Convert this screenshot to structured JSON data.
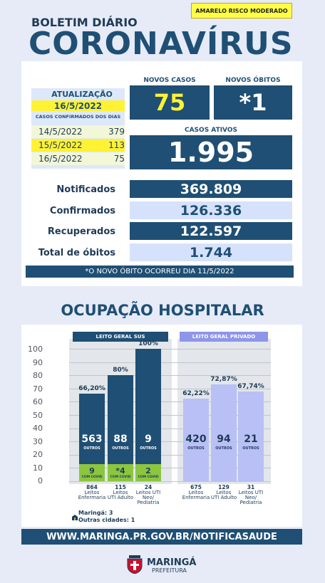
{
  "header": {
    "risk_level": "AMARELO RISCO MODERADO",
    "subtitle": "BOLETIM DIÁRIO",
    "title": "CORONAVÍRUS"
  },
  "update": {
    "label": "ATUALIZAÇÃO",
    "date": "16/5/2022",
    "cases_by_day_label": "CASOS CONFIRMADOS DOS DIAS",
    "days": [
      {
        "date": "14/5/2022",
        "value": "379"
      },
      {
        "date": "15/5/2022",
        "value": "113"
      },
      {
        "date": "16/5/2022",
        "value": "75"
      }
    ]
  },
  "new_cases": {
    "label": "NOVOS CASOS",
    "value": "75"
  },
  "new_deaths": {
    "label": "NOVOS ÓBITOS",
    "value": "*1"
  },
  "active_cases": {
    "label": "CASOS ATIVOS",
    "value": "1.995"
  },
  "stats": [
    {
      "label": "Notificados",
      "value": "369.809"
    },
    {
      "label": "Confirmados",
      "value": "126.336"
    },
    {
      "label": "Recuperados",
      "value": "122.597"
    },
    {
      "label": "Total de óbitos",
      "value": "1.744"
    }
  ],
  "footnote": "*O NOVO ÓBITO OCORREU DIA 11/5/2022",
  "occupancy": {
    "title": "OCUPAÇÃO HOSPITALAR",
    "y_ticks": [
      "100",
      "90",
      "80",
      "70",
      "60",
      "50",
      "40",
      "30",
      "20",
      "10",
      "0"
    ],
    "sus": {
      "title": "LEITO GERAL SUS",
      "bars": [
        {
          "pct_label": "66,20%",
          "pct": 66.2,
          "others": "563",
          "others_label": "OUTROS",
          "covid": "9",
          "covid_label": "COM COVID",
          "beds": "864",
          "name": [
            "Leitos",
            "Enfermaria"
          ]
        },
        {
          "pct_label": "80%",
          "pct": 80,
          "others": "88",
          "others_label": "OUTROS",
          "covid": "*4",
          "covid_label": "COM COVID",
          "beds": "115",
          "name": [
            "Leitos",
            "UTI Adulto"
          ]
        },
        {
          "pct_label": "100%",
          "pct": 100,
          "others": "9",
          "others_label": "OUTROS",
          "covid": "2",
          "covid_label": "COM COVID",
          "beds": "24",
          "name": [
            "Leitos UTI",
            "Neo/",
            "Pediatria"
          ]
        }
      ]
    },
    "private": {
      "title": "LEITO GERAL PRIVADO",
      "bars": [
        {
          "pct_label": "62,22%",
          "pct": 62.22,
          "others": "420",
          "others_label": "OUTROS",
          "beds": "675",
          "name": [
            "Leitos",
            "Enfermaria"
          ]
        },
        {
          "pct_label": "72,87%",
          "pct": 72.87,
          "others": "94",
          "others_label": "OUTROS",
          "beds": "129",
          "name": [
            "Leitos",
            "UTI Adulto"
          ]
        },
        {
          "pct_label": "67,74%",
          "pct": 67.74,
          "others": "21",
          "others_label": "OUTROS",
          "beds": "31",
          "name": [
            "Leitos UTI",
            "Neo/",
            "Pediatria"
          ]
        }
      ]
    },
    "note_lines": [
      "Maringá: 3",
      "Outras cidades: 1"
    ]
  },
  "colors": {
    "dark_blue": "#1f4f74",
    "light_blue": "#d6e2fb",
    "yellow": "#fff235",
    "green": "#8cc63f",
    "lavender": "#b8c0f5"
  },
  "website": "WWW.MARINGA.PR.GOV.BR/NOTIFICASAUDE",
  "footer": {
    "city": "MARINGÁ",
    "sub": "PREFEITURA",
    "crest_icon": "city-crest-icon"
  }
}
